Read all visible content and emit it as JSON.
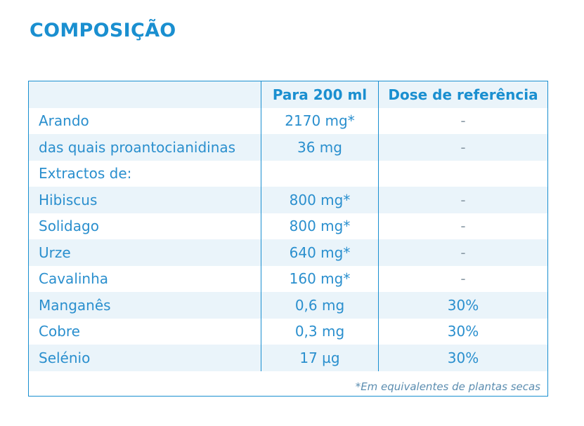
{
  "header": {
    "title": "COMPOSIÇÃO"
  },
  "table": {
    "columns": [
      "Para 200 ml",
      "Dose de referência"
    ],
    "rows": [
      [
        "Arando",
        "2170 mg*",
        "-"
      ],
      [
        "das quais proantocianidinas",
        "36 mg",
        "-"
      ],
      [
        "Extractos de:"
      ],
      [
        "Hibiscus",
        "800 mg*",
        "-"
      ],
      [
        "Solidago",
        "800 mg*",
        "-"
      ],
      [
        "Urze",
        "640 mg*",
        "-"
      ],
      [
        "Cavalinha",
        "160 mg*",
        "-"
      ],
      [
        "Manganês",
        "0,6 mg",
        "30%"
      ],
      [
        "Cobre",
        "0,3 mg",
        "30%"
      ],
      [
        "Selénio",
        "17 µg",
        "30%"
      ]
    ],
    "footnote": "*Em equivalentes de plantas secas"
  }
}
